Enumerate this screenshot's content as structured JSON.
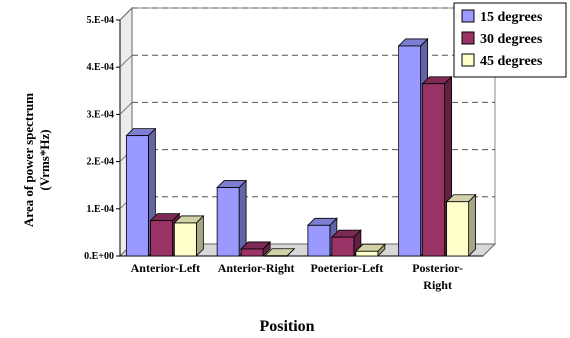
{
  "chart_data": {
    "type": "bar",
    "title": "",
    "xlabel": "Position",
    "ylabel": [
      "Area of power spectrum",
      "(Vrms*Hz)"
    ],
    "categories": [
      "Anterior-Left",
      "Anterior-Right",
      "Poeterior-Left",
      "Posterior-Right"
    ],
    "category_label_lines": [
      [
        "Anterior-Left"
      ],
      [
        "Anterior-Right"
      ],
      [
        "Poeterior-Left"
      ],
      [
        "Posterior-",
        "Right"
      ]
    ],
    "y_ticks": [
      0,
      0.0001,
      0.0002,
      0.0003,
      0.0004,
      0.0005
    ],
    "y_tick_labels": [
      "0.E+00",
      "1.E-04",
      "2.E-04",
      "3.E-04",
      "4.E-04",
      "5.E-04"
    ],
    "ylim": [
      0,
      0.0005
    ],
    "grid": "dashed horizontal",
    "legend_position": "top-right",
    "series": [
      {
        "name": "15 degrees",
        "color": "#9999ff",
        "values": [
          0.000255,
          0.000145,
          6.5e-05,
          0.000445
        ]
      },
      {
        "name": "30 degrees",
        "color": "#993366",
        "values": [
          7.5e-05,
          1.5e-05,
          4e-05,
          0.000365
        ]
      },
      {
        "name": "45 degrees",
        "color": "#ffffcc",
        "values": [
          7e-05,
          5e-07,
          1e-05,
          0.000115
        ]
      }
    ]
  }
}
